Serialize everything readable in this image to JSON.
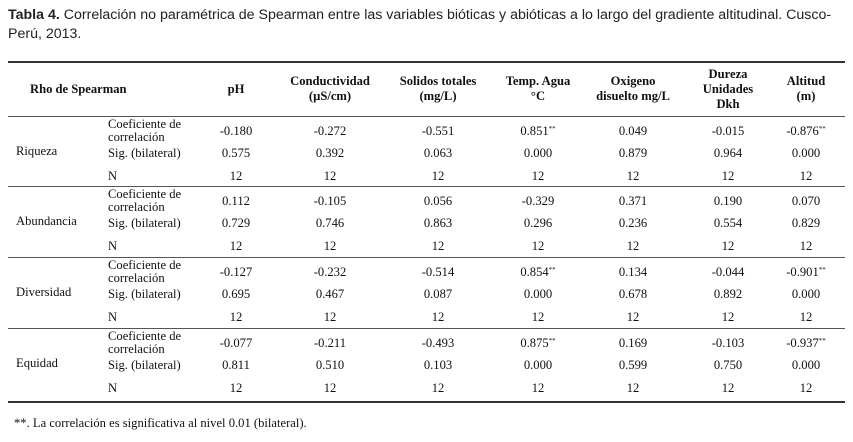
{
  "caption": {
    "label": "Tabla 4.",
    "text": "Correlación no paramétrica de Spearman entre las variables bióticas y abióticas  a lo largo del gradiente altitudinal. Cusco-Perú, 2013."
  },
  "table": {
    "headers": {
      "rho": "Rho de Spearman",
      "cols": [
        [
          "pH"
        ],
        [
          "Conductividad",
          "(µS/cm)"
        ],
        [
          "Solidos totales",
          "(mg/L)"
        ],
        [
          "Temp. Agua",
          "°C"
        ],
        [
          "Oxigeno",
          "disuelto mg/L"
        ],
        [
          "Dureza",
          "Unidades",
          "Dkh"
        ],
        [
          "Altitud",
          "(m)"
        ]
      ]
    },
    "stat_labels": {
      "coef": [
        "Coeficiente de",
        "correlación"
      ],
      "sig": "Sig. (bilateral)",
      "n": "N"
    },
    "groups": [
      {
        "name": "Riqueza",
        "coef": [
          "-0.180",
          "-0.272",
          "-0.551",
          "0.851**",
          "0.049",
          "-0.015",
          "-0.876**"
        ],
        "sig": [
          "0.575",
          "0.392",
          "0.063",
          "0.000",
          "0.879",
          "0.964",
          "0.000"
        ],
        "n": [
          "12",
          "12",
          "12",
          "12",
          "12",
          "12",
          "12"
        ]
      },
      {
        "name": "Abundancia",
        "coef": [
          "0.112",
          "-0.105",
          "0.056",
          "-0.329",
          "0.371",
          "0.190",
          "0.070"
        ],
        "sig": [
          "0.729",
          "0.746",
          "0.863",
          "0.296",
          "0.236",
          "0.554",
          "0.829"
        ],
        "n": [
          "12",
          "12",
          "12",
          "12",
          "12",
          "12",
          "12"
        ]
      },
      {
        "name": "Diversidad",
        "coef": [
          "-0.127",
          "-0.232",
          "-0.514",
          "0.854**",
          "0.134",
          "-0.044",
          "-0.901**"
        ],
        "sig": [
          "0.695",
          "0.467",
          "0.087",
          "0.000",
          "0.678",
          "0.892",
          "0.000"
        ],
        "n": [
          "12",
          "12",
          "12",
          "12",
          "12",
          "12",
          "12"
        ]
      },
      {
        "name": "Equidad",
        "coef": [
          "-0.077",
          "-0.211",
          "-0.493",
          "0.875**",
          "0.169",
          "-0.103",
          "-0.937**"
        ],
        "sig": [
          "0.811",
          "0.510",
          "0.103",
          "0.000",
          "0.599",
          "0.750",
          "0.000"
        ],
        "n": [
          "12",
          "12",
          "12",
          "12",
          "12",
          "12",
          "12"
        ]
      }
    ]
  },
  "footnote": "**. La correlación es significativa al nivel 0.01 (bilateral)."
}
